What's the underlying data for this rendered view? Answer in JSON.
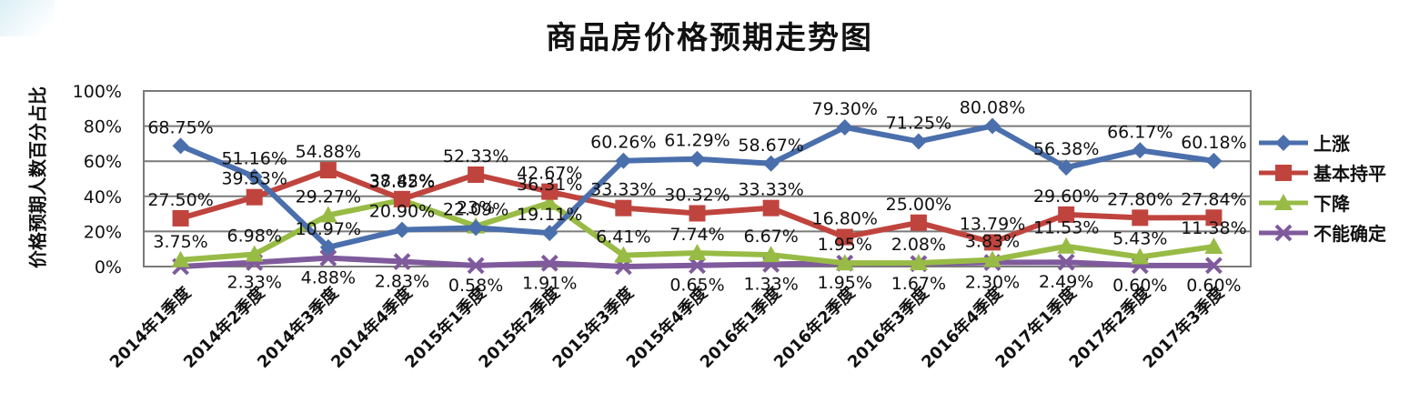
{
  "chart_data": {
    "type": "line",
    "title": "商品房价格预期走势图",
    "ylabel": "价格预期人数百分占比",
    "xlabel": "",
    "ylim": [
      0,
      100
    ],
    "yticks": [
      "0%",
      "20%",
      "40%",
      "60%",
      "80%",
      "100%"
    ],
    "grid": true,
    "legend_position": "right",
    "categories": [
      "2014年1季度",
      "2014年2季度",
      "2014年3季度",
      "2014年4季度",
      "2015年1季度",
      "2015年2季度",
      "2015年3季度",
      "2015年4季度",
      "2016年1季度",
      "2016年2季度",
      "2016年3季度",
      "2016年4季度",
      "2017年1季度",
      "2017年2季度",
      "2017年3季度"
    ],
    "series": [
      {
        "name": "上涨",
        "color": "#4a6fac",
        "marker": "diamond",
        "values": [
          68.75,
          51.16,
          10.97,
          20.9,
          22.09,
          19.11,
          60.26,
          61.29,
          58.67,
          79.3,
          71.25,
          80.08,
          56.38,
          66.17,
          60.18
        ],
        "labels": [
          "68.75%",
          "51.16%",
          "10.97%",
          "20.90%",
          "22.09%",
          "19.11%",
          "60.26%",
          "61.29%",
          "58.67%",
          "79.30%",
          "71.25%",
          "80.08%",
          "56.38%",
          "66.17%",
          "60.18%"
        ]
      },
      {
        "name": "基本持平",
        "color": "#c0443e",
        "marker": "square",
        "values": [
          27.5,
          39.53,
          54.88,
          38.42,
          52.33,
          42.67,
          33.33,
          30.32,
          33.33,
          16.8,
          25.0,
          13.79,
          29.6,
          27.8,
          27.84
        ],
        "labels": [
          "27.50%",
          "39.53%",
          "54.88%",
          "38.42%",
          "52.33%",
          "42.67%",
          "33.33%",
          "30.32%",
          "33.33%",
          "16.80%",
          "25.00%",
          "13.79%",
          "29.60%",
          "27.80%",
          "27.84%"
        ]
      },
      {
        "name": "下降",
        "color": "#98bb45",
        "marker": "triangle",
        "values": [
          3.75,
          6.98,
          29.27,
          37.85,
          23.0,
          36.31,
          6.41,
          7.74,
          6.67,
          1.95,
          2.08,
          3.83,
          11.53,
          5.43,
          11.38
        ],
        "labels": [
          "3.75%",
          "6.98%",
          "29.27%",
          "37.85%",
          "23%",
          "36.31%",
          "6.41%",
          "7.74%",
          "6.67%",
          "1.95%",
          "2.08%",
          "3.83%",
          "11.53%",
          "5.43%",
          "11.38%"
        ]
      },
      {
        "name": "不能确定",
        "color": "#7f5a9c",
        "marker": "x",
        "values": [
          0.0,
          2.33,
          4.88,
          2.83,
          0.58,
          1.91,
          0.0,
          0.65,
          1.33,
          1.95,
          1.67,
          2.3,
          2.49,
          0.6,
          0.6
        ],
        "labels": [
          "",
          "2.33%",
          "4.88%",
          "2.83%",
          "0.58%",
          "1.91%",
          "",
          "0.65%",
          "1.33%",
          "1.95%",
          "1.67%",
          "2.30%",
          "2.49%",
          "0.60%",
          "0.60%"
        ]
      }
    ]
  }
}
